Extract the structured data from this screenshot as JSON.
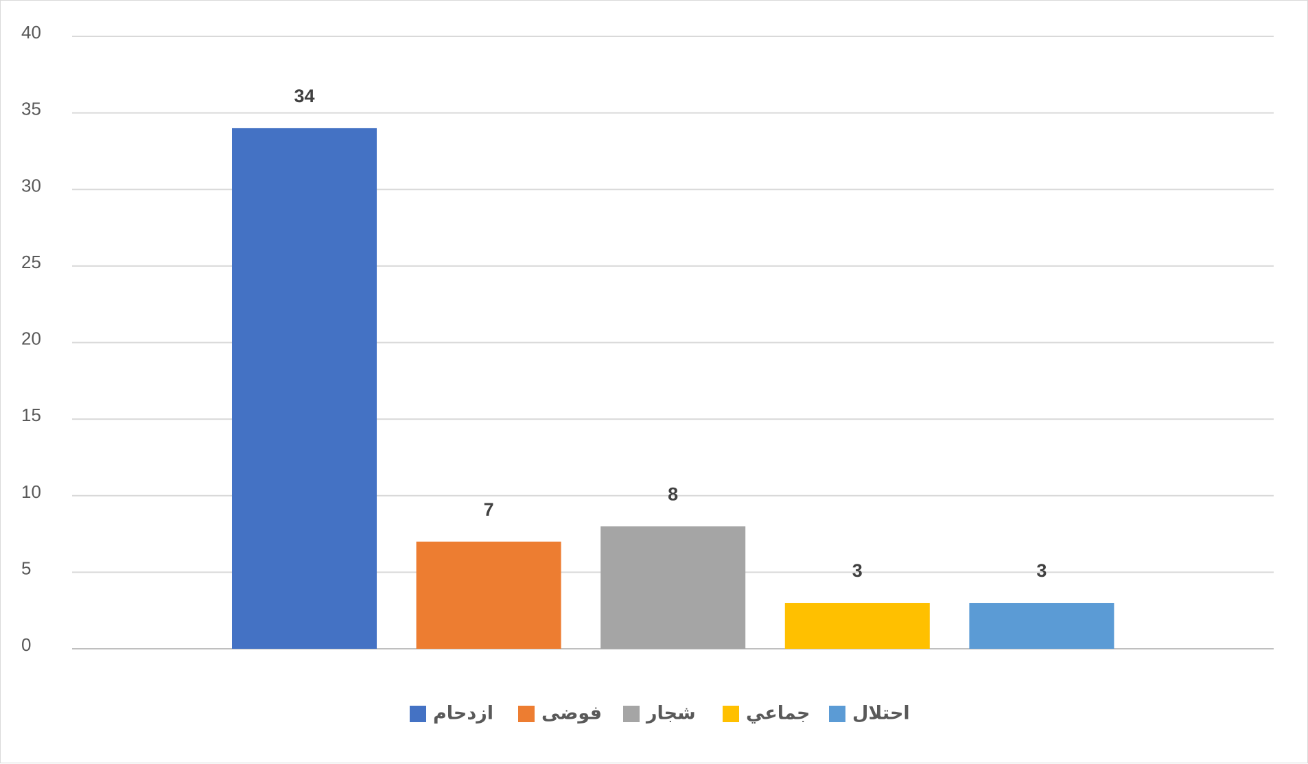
{
  "chart_data": {
    "type": "bar",
    "title": "",
    "xlabel": "",
    "ylabel": "",
    "ylim": [
      0,
      40
    ],
    "yticks": [
      0,
      5,
      10,
      15,
      20,
      25,
      30,
      35,
      40
    ],
    "grid": true,
    "legend_position": "bottom",
    "series": [
      {
        "name": "ازدحام",
        "value": 34,
        "color": "#4472C4"
      },
      {
        "name": "فوضى",
        "value": 7,
        "color": "#ED7D31"
      },
      {
        "name": "شجار",
        "value": 8,
        "color": "#A5A5A5"
      },
      {
        "name": "جماعي",
        "value": 3,
        "color": "#FFC000"
      },
      {
        "name": "احتلال",
        "value": 3,
        "color": "#5B9BD5"
      }
    ]
  }
}
